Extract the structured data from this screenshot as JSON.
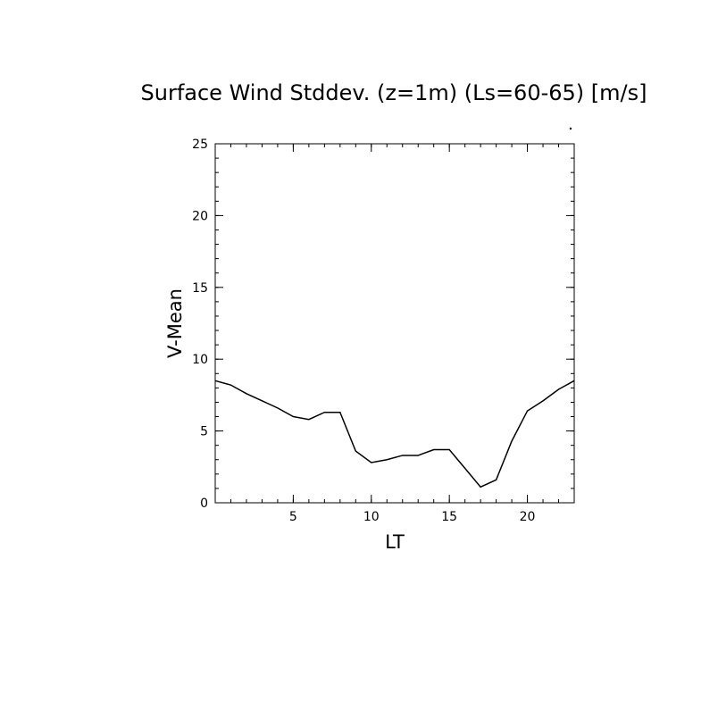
{
  "chart_data": {
    "type": "line",
    "title": "Surface Wind Stddev. (z=1m) (Ls=60-65) [m/s]",
    "xlabel": "LT",
    "ylabel": "V-Mean",
    "xlim": [
      0,
      23
    ],
    "ylim": [
      0,
      25
    ],
    "xticks": [
      5,
      10,
      15,
      20
    ],
    "yticks": [
      0,
      5,
      10,
      15,
      20,
      25
    ],
    "x_minor_step": 1,
    "y_minor_step": 1,
    "grid": false,
    "line_color": "#000000",
    "series": [
      {
        "x": [
          0,
          1,
          2,
          3,
          4,
          5,
          6,
          7,
          8,
          9,
          10,
          11,
          12,
          13,
          14,
          15,
          16,
          17,
          18,
          19,
          20,
          21,
          22,
          23
        ],
        "y": [
          8.5,
          8.2,
          7.6,
          7.1,
          6.6,
          6.0,
          5.8,
          6.3,
          6.3,
          3.6,
          2.8,
          3.0,
          3.3,
          3.3,
          3.7,
          3.7,
          2.4,
          1.1,
          1.6,
          4.3,
          6.4,
          7.1,
          7.9,
          8.5
        ]
      }
    ]
  }
}
